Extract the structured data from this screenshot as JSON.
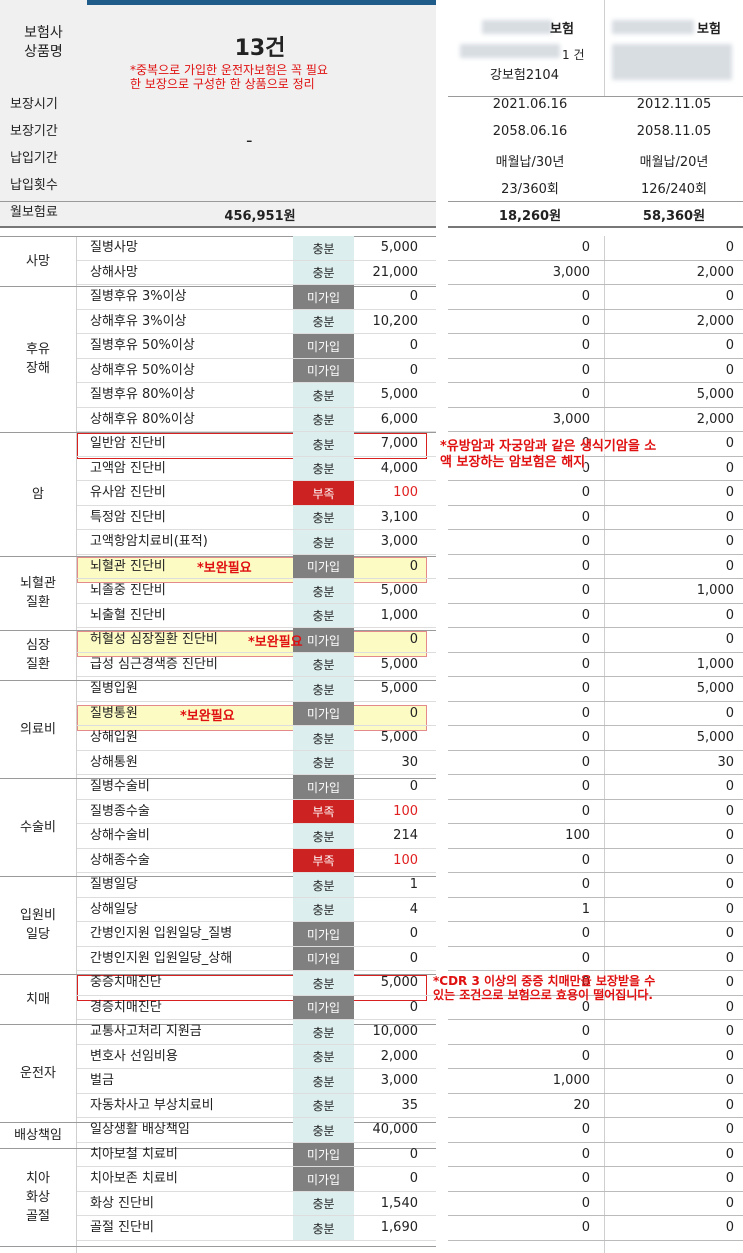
{
  "header": {
    "label_line1": "보험사",
    "label_line2": "상품명",
    "count": "13건",
    "note_line1": "*중복으로 가입한 운전자보험은 꼭 필요",
    "note_line2": "한 보장으로 구성한 한 상품으로 정리",
    "ins1_name": "\u0000보험",
    "ins1_count": "1 건",
    "ins1_product": "강보험2104",
    "ins2_name": "보험"
  },
  "info_rows": [
    {
      "label": "보장시기",
      "d1": "2021.06.16",
      "d2": "2012.11.05"
    },
    {
      "label": "보장기간",
      "d1": "2058.06.16",
      "d2": "2058.11.05"
    },
    {
      "label": "납입기간",
      "d1": "매월납/30년",
      "d2": "매월납/20년"
    },
    {
      "label": "납입횟수",
      "d1": "23/360회",
      "d2": "126/240회"
    },
    {
      "label": "월보험료",
      "total": "456,951원",
      "d1": "18,260원",
      "d2": "58,360원"
    }
  ],
  "dash": "-",
  "groups": {
    "death": "사망",
    "disability_1": "후유",
    "disability_2": "장해",
    "cancer": "암",
    "brain_1": "뇌혈관",
    "brain_2": "질환",
    "heart_1": "심장",
    "heart_2": "질환",
    "medical": "의료비",
    "surgery": "수술비",
    "hosp_1": "입원비",
    "hosp_2": "일당",
    "dementia": "치매",
    "driver": "운전자",
    "liability": "배상책임",
    "dental_1": "치아",
    "dental_2": "화상",
    "dental_3": "골절"
  },
  "rows": [
    {
      "label": "질병사망",
      "status": "충분",
      "amount": "5,000",
      "i1": "0",
      "i2": "0"
    },
    {
      "label": "상해사망",
      "status": "충분",
      "amount": "21,000",
      "i1": "3,000",
      "i2": "2,000"
    },
    {
      "label": "질병후유 3%이상",
      "status": "미가입",
      "amount": "0",
      "i1": "0",
      "i2": "0"
    },
    {
      "label": "상해후유 3%이상",
      "status": "충분",
      "amount": "10,200",
      "i1": "0",
      "i2": "2,000"
    },
    {
      "label": "질병후유 50%이상",
      "status": "미가입",
      "amount": "0",
      "i1": "0",
      "i2": "0"
    },
    {
      "label": "상해후유 50%이상",
      "status": "미가입",
      "amount": "0",
      "i1": "0",
      "i2": "0"
    },
    {
      "label": "질병후유 80%이상",
      "status": "충분",
      "amount": "5,000",
      "i1": "0",
      "i2": "5,000"
    },
    {
      "label": "상해후유 80%이상",
      "status": "충분",
      "amount": "6,000",
      "i1": "3,000",
      "i2": "2,000"
    },
    {
      "label": "일반암 진단비",
      "status": "충분",
      "amount": "7,000",
      "i1": "0",
      "i2": "0"
    },
    {
      "label": "고액암 진단비",
      "status": "충분",
      "amount": "4,000",
      "i1": "0",
      "i2": "0"
    },
    {
      "label": "유사암 진단비",
      "status": "부족",
      "amount": "100",
      "i1": "0",
      "i2": "0"
    },
    {
      "label": "특정암 진단비",
      "status": "충분",
      "amount": "3,100",
      "i1": "0",
      "i2": "0"
    },
    {
      "label": "고액항암치료비(표적)",
      "status": "충분",
      "amount": "3,000",
      "i1": "0",
      "i2": "0"
    },
    {
      "label": "뇌혈관 진단비",
      "status": "미가입",
      "amount": "0",
      "i1": "0",
      "i2": "0"
    },
    {
      "label": "뇌졸중 진단비",
      "status": "충분",
      "amount": "5,000",
      "i1": "0",
      "i2": "1,000"
    },
    {
      "label": "뇌출혈 진단비",
      "status": "충분",
      "amount": "1,000",
      "i1": "0",
      "i2": "0"
    },
    {
      "label": "허혈성 심장질환 진단비",
      "status": "미가입",
      "amount": "0",
      "i1": "0",
      "i2": "0"
    },
    {
      "label": "급성 심근경색증 진단비",
      "status": "충분",
      "amount": "5,000",
      "i1": "0",
      "i2": "1,000"
    },
    {
      "label": "질병입원",
      "status": "충분",
      "amount": "5,000",
      "i1": "0",
      "i2": "5,000"
    },
    {
      "label": "질병통원",
      "status": "미가입",
      "amount": "0",
      "i1": "0",
      "i2": "0"
    },
    {
      "label": "상해입원",
      "status": "충분",
      "amount": "5,000",
      "i1": "0",
      "i2": "5,000"
    },
    {
      "label": "상해통원",
      "status": "충분",
      "amount": "30",
      "i1": "0",
      "i2": "30"
    },
    {
      "label": "질병수술비",
      "status": "미가입",
      "amount": "0",
      "i1": "0",
      "i2": "0"
    },
    {
      "label": "질병종수술",
      "status": "부족",
      "amount": "100",
      "i1": "0",
      "i2": "0"
    },
    {
      "label": "상해수술비",
      "status": "충분",
      "amount": "214",
      "i1": "100",
      "i2": "0"
    },
    {
      "label": "상해종수술",
      "status": "부족",
      "amount": "100",
      "i1": "0",
      "i2": "0"
    },
    {
      "label": "질병일당",
      "status": "충분",
      "amount": "1",
      "i1": "0",
      "i2": "0"
    },
    {
      "label": "상해일당",
      "status": "충분",
      "amount": "4",
      "i1": "1",
      "i2": "0"
    },
    {
      "label": "간병인지원 입원일당_질병",
      "status": "미가입",
      "amount": "0",
      "i1": "0",
      "i2": "0"
    },
    {
      "label": "간병인지원 입원일당_상해",
      "status": "미가입",
      "amount": "0",
      "i1": "0",
      "i2": "0"
    },
    {
      "label": "중증치매진단",
      "status": "충분",
      "amount": "5,000",
      "i1": "0",
      "i2": "0"
    },
    {
      "label": "경증치매진단",
      "status": "미가입",
      "amount": "0",
      "i1": "0",
      "i2": "0"
    },
    {
      "label": "교통사고처리 지원금",
      "status": "충분",
      "amount": "10,000",
      "i1": "0",
      "i2": "0"
    },
    {
      "label": "변호사 선임비용",
      "status": "충분",
      "amount": "2,000",
      "i1": "0",
      "i2": "0"
    },
    {
      "label": "벌금",
      "status": "충분",
      "amount": "3,000",
      "i1": "1,000",
      "i2": "0"
    },
    {
      "label": "자동차사고 부상치료비",
      "status": "충분",
      "amount": "35",
      "i1": "20",
      "i2": "0"
    },
    {
      "label": "일상생활 배상책임",
      "status": "충분",
      "amount": "40,000",
      "i1": "0",
      "i2": "0"
    },
    {
      "label": "치아보철 치료비",
      "status": "미가입",
      "amount": "0",
      "i1": "0",
      "i2": "0"
    },
    {
      "label": "치아보존 치료비",
      "status": "미가입",
      "amount": "0",
      "i1": "0",
      "i2": "0"
    },
    {
      "label": "화상 진단비",
      "status": "충분",
      "amount": "1,540",
      "i1": "0",
      "i2": "0"
    },
    {
      "label": "골절 진단비",
      "status": "충분",
      "amount": "1,690",
      "i1": "0",
      "i2": "0"
    }
  ],
  "notes": {
    "supplement": "*보완필요",
    "cancer_line1": "*유방암과 자궁암과 같은 생식기암을 소",
    "cancer_line2": "액 보장하는 암보험은 해지",
    "dementia_line1": "*CDR 3 이상의 중증 치매만을 보장받을 수",
    "dementia_line2": "있는 조건으로 보험으로 효용이 떨어집니다."
  },
  "colors": {
    "accent_bar": "#1f5c8a",
    "enough_bg": "#dcefee",
    "not_joined_bg": "#808080",
    "lacking_bg": "#cc2222",
    "highlight_yellow": "#fdfbc4",
    "note_red": "#e01010"
  }
}
